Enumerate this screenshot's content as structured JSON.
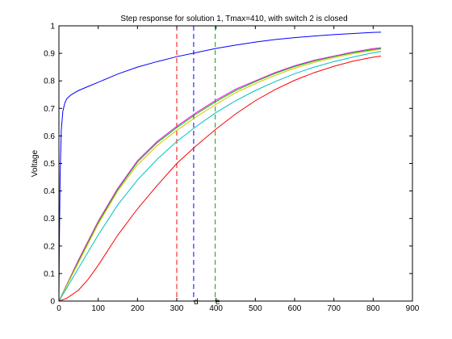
{
  "chart_data": {
    "type": "line",
    "title": "Step response for solution 1, Tmax=410, with switch 2 is closed",
    "xlabel": "",
    "ylabel": "Voltage",
    "xlim": [
      0,
      900
    ],
    "ylim": [
      0,
      1
    ],
    "xticks": [
      "0",
      "100",
      "200",
      "300",
      "400",
      "500",
      "600",
      "700",
      "800",
      "900"
    ],
    "yticks": [
      "0",
      "0.1",
      "0.2",
      "0.3",
      "0.4",
      "0.5",
      "0.6",
      "0.7",
      "0.8",
      "0.9",
      "1"
    ],
    "grid": false,
    "series": [
      {
        "color": "#0000ff",
        "x": [
          0,
          1,
          3,
          6,
          10,
          15,
          20,
          25,
          30,
          40,
          50,
          75,
          100,
          150,
          200,
          250,
          300,
          350,
          400,
          450,
          500,
          550,
          600,
          650,
          700,
          750,
          800,
          820
        ],
        "y": [
          0,
          0.2,
          0.45,
          0.62,
          0.69,
          0.72,
          0.735,
          0.742,
          0.748,
          0.757,
          0.765,
          0.78,
          0.795,
          0.825,
          0.85,
          0.87,
          0.888,
          0.903,
          0.918,
          0.93,
          0.941,
          0.95,
          0.957,
          0.963,
          0.968,
          0.972,
          0.976,
          0.977
        ]
      },
      {
        "color": "#ff00ff",
        "x": [
          0,
          50,
          100,
          150,
          200,
          250,
          300,
          350,
          400,
          450,
          500,
          550,
          600,
          650,
          700,
          750,
          800,
          820
        ],
        "y": [
          0,
          0.15,
          0.29,
          0.41,
          0.51,
          0.58,
          0.635,
          0.685,
          0.73,
          0.77,
          0.8,
          0.83,
          0.855,
          0.875,
          0.89,
          0.905,
          0.917,
          0.92
        ]
      },
      {
        "color": "#00c000",
        "x": [
          0,
          50,
          100,
          150,
          200,
          250,
          300,
          350,
          400,
          450,
          500,
          550,
          600,
          650,
          700,
          750,
          800,
          820
        ],
        "y": [
          0,
          0.145,
          0.285,
          0.405,
          0.505,
          0.575,
          0.63,
          0.68,
          0.725,
          0.765,
          0.797,
          0.827,
          0.852,
          0.872,
          0.888,
          0.903,
          0.914,
          0.918
        ]
      },
      {
        "color": "#e0c000",
        "x": [
          0,
          50,
          100,
          150,
          200,
          250,
          300,
          350,
          400,
          450,
          500,
          550,
          600,
          650,
          700,
          750,
          800,
          820
        ],
        "y": [
          0,
          0.14,
          0.28,
          0.4,
          0.495,
          0.565,
          0.62,
          0.67,
          0.715,
          0.757,
          0.79,
          0.82,
          0.846,
          0.867,
          0.884,
          0.899,
          0.911,
          0.915
        ]
      },
      {
        "color": "#00c0c0",
        "x": [
          0,
          50,
          100,
          150,
          200,
          250,
          300,
          350,
          400,
          450,
          500,
          550,
          600,
          650,
          700,
          750,
          800,
          820
        ],
        "y": [
          0,
          0.12,
          0.24,
          0.35,
          0.44,
          0.515,
          0.58,
          0.635,
          0.685,
          0.728,
          0.765,
          0.797,
          0.826,
          0.85,
          0.87,
          0.887,
          0.902,
          0.907
        ]
      },
      {
        "color": "#ff0000",
        "x": [
          0,
          20,
          50,
          75,
          100,
          150,
          200,
          250,
          300,
          350,
          400,
          450,
          500,
          550,
          600,
          650,
          700,
          750,
          800,
          820
        ],
        "y": [
          0,
          0.01,
          0.04,
          0.08,
          0.13,
          0.24,
          0.335,
          0.42,
          0.5,
          0.565,
          0.625,
          0.68,
          0.728,
          0.768,
          0.802,
          0.83,
          0.853,
          0.872,
          0.886,
          0.89
        ]
      }
    ],
    "vlines": [
      {
        "x": 300,
        "color": "#ff0000",
        "label": ""
      },
      {
        "x": 343,
        "color": "#0000ff",
        "label": "d"
      },
      {
        "x": 398,
        "color": "#00a000",
        "label": "e"
      }
    ]
  }
}
